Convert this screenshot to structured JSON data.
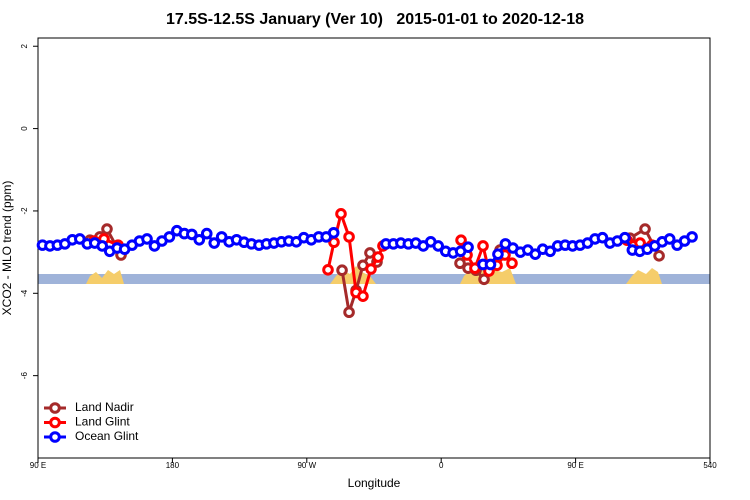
{
  "chart_data": {
    "type": "line",
    "title": "17.5S-12.5S January (Ver 10)   2015-01-01 to 2020-12-18",
    "x_label": "Longitude",
    "y_label": "XCO2 - MLO trend (ppm)",
    "xlim": [
      90,
      540
    ],
    "ylim": [
      -8,
      2.2
    ],
    "xticks": [
      {
        "value": 90,
        "label": "90 E"
      },
      180,
      {
        "value": 270,
        "label": "90 W"
      },
      {
        "value": 360,
        "label": "0"
      },
      {
        "value": 450,
        "label": "90 E"
      },
      540
    ],
    "yticks": [
      -6,
      -4,
      -2,
      0,
      2
    ],
    "legend": "bottomleft",
    "series": [
      {
        "name": "Land Nadir",
        "color": "#a52a2a",
        "x": [
          124.8,
          131.5,
          136.2,
          145.6,
          null,
          293.6,
          298.3,
          303,
          307.6,
          312.3,
          317,
          null,
          372.6,
          378,
          383.3,
          388.7,
          394,
          399.4,
          null,
          486.4,
          496.5,
          505.9
        ],
        "values": [
          -2.71,
          -2.63,
          -2.44,
          -3.07,
          null,
          -3.44,
          -4.46,
          -3.93,
          -3.32,
          -3.02,
          -3.24,
          null,
          -3.27,
          -3.39,
          -3.44,
          -3.66,
          -3.32,
          -2.95,
          null,
          -2.66,
          -2.44,
          -3.09
        ]
      },
      {
        "name": "Land Glint",
        "color": "#ff0000",
        "x": [
          127.5,
          134.2,
          143.6,
          null,
          284.2,
          288.2,
          292.9,
          298.3,
          303,
          307.6,
          313,
          317.7,
          321,
          null,
          373.3,
          377.3,
          382.6,
          388,
          392,
          397.4,
          402.7,
          407.4,
          null,
          484.4,
          493.2,
          501.2
        ],
        "values": [
          -2.73,
          -2.68,
          -2.83,
          null,
          -3.43,
          -2.76,
          -2.07,
          -2.63,
          -3.98,
          -4.07,
          -3.41,
          -3.12,
          -2.85,
          null,
          -2.71,
          -3.07,
          -3.39,
          -2.85,
          -3.46,
          -3.32,
          -3.07,
          -3.27,
          null,
          -2.71,
          -2.78,
          -2.83
        ]
      },
      {
        "name": "Ocean Glint",
        "color": "#0000ff",
        "x": [
          93,
          98,
          103,
          108,
          113,
          118,
          123,
          128,
          133,
          138,
          143,
          148,
          153,
          158,
          163,
          168,
          173,
          178,
          183,
          188,
          193,
          198,
          203,
          208,
          213,
          218,
          223,
          228,
          233,
          238,
          243,
          248,
          253,
          258,
          263,
          268,
          273,
          278,
          283,
          288,
          null,
          323,
          328,
          333,
          338,
          343,
          348,
          353,
          358,
          363,
          368,
          373,
          378,
          null,
          388,
          393,
          398,
          403,
          408,
          413,
          418,
          423,
          428,
          433,
          438,
          443,
          448,
          453,
          458,
          463,
          468,
          473,
          478,
          483,
          488,
          493,
          498,
          503,
          508,
          513,
          518,
          523,
          528
        ],
        "values": [
          -2.83,
          -2.85,
          -2.83,
          -2.8,
          -2.7,
          -2.68,
          -2.8,
          -2.78,
          -2.85,
          -2.98,
          -2.9,
          -2.93,
          -2.83,
          -2.73,
          -2.68,
          -2.85,
          -2.73,
          -2.63,
          -2.48,
          -2.55,
          -2.57,
          -2.7,
          -2.55,
          -2.78,
          -2.63,
          -2.75,
          -2.7,
          -2.76,
          -2.8,
          -2.83,
          -2.8,
          -2.78,
          -2.75,
          -2.73,
          -2.75,
          -2.65,
          -2.7,
          -2.63,
          -2.63,
          -2.53,
          null,
          -2.8,
          -2.8,
          -2.78,
          -2.8,
          -2.78,
          -2.85,
          -2.75,
          -2.85,
          -2.98,
          -3.02,
          -2.98,
          -2.88,
          null,
          -3.3,
          -3.3,
          -3.05,
          -2.8,
          -2.9,
          -3.0,
          -2.95,
          -3.05,
          -2.93,
          -2.98,
          -2.85,
          -2.83,
          -2.85,
          -2.83,
          -2.78,
          -2.68,
          -2.65,
          -2.78,
          -2.73,
          -2.65,
          -2.95,
          -2.98,
          -2.93,
          -2.85,
          -2.75,
          -2.68,
          -2.83,
          -2.73,
          -2.63
        ]
      }
    ]
  }
}
